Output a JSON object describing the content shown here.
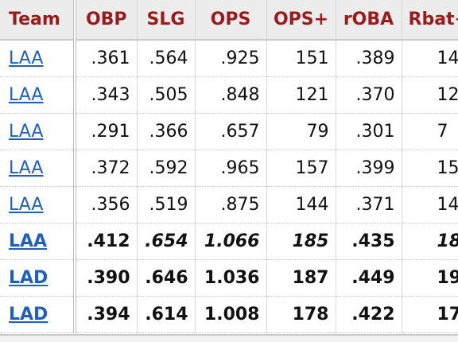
{
  "table": {
    "headers": [
      "Team",
      "OBP",
      "SLG",
      "OPS",
      "OPS+",
      "rOBA",
      "Rbat+"
    ],
    "rows": [
      [
        "LAA",
        ".361",
        ".564",
        ".925",
        "151",
        ".389",
        "14"
      ],
      [
        "LAA",
        ".343",
        ".505",
        ".848",
        "121",
        ".370",
        "12"
      ],
      [
        "LAA",
        ".291",
        ".366",
        ".657",
        "79",
        ".301",
        "7"
      ],
      [
        "LAA",
        ".372",
        ".592",
        ".965",
        "157",
        ".399",
        "15"
      ],
      [
        "LAA",
        ".356",
        ".519",
        ".875",
        "144",
        ".371",
        "14"
      ],
      [
        "LAA",
        ".412",
        ".654",
        "1.066",
        "185",
        ".435",
        "18"
      ],
      [
        "LAD",
        ".390",
        ".646",
        "1.036",
        "187",
        ".449",
        "19"
      ],
      [
        "LAD",
        ".394",
        ".614",
        "1.008",
        "178",
        ".422",
        "17"
      ]
    ]
  }
}
